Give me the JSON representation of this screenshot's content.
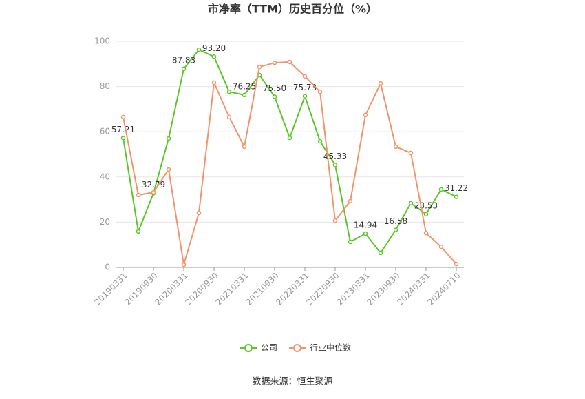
{
  "chart_data": {
    "type": "line",
    "title": "市净率（TTM）历史百分位（%）",
    "source": "数据来源：恒生聚源",
    "categories": [
      "20190331",
      null,
      "20190930",
      null,
      "20200331",
      null,
      "20200930",
      null,
      "20210331",
      null,
      "20210930",
      null,
      "20220331",
      null,
      "20220930",
      null,
      "20230331",
      null,
      "20230930",
      null,
      "20240331",
      null,
      "20240710"
    ],
    "series": [
      {
        "name": "公司",
        "color": "#5ac728",
        "values": [
          57.21,
          15.9,
          32.79,
          57.0,
          87.83,
          96.3,
          93.2,
          77.7,
          76.25,
          85.1,
          75.5,
          57.3,
          75.73,
          55.8,
          45.33,
          11.3,
          14.94,
          6.4,
          16.58,
          28.4,
          23.53,
          34.5,
          31.22
        ],
        "value_labels": [
          "57.21",
          null,
          "32.79",
          null,
          "87.83",
          null,
          "93.20",
          null,
          "76.25",
          null,
          "75.50",
          null,
          "75.73",
          null,
          "45.33",
          null,
          "14.94",
          null,
          "16.58",
          null,
          "23.53",
          null,
          "31.22"
        ]
      },
      {
        "name": "行业中位数",
        "color": "#f4926b",
        "values": [
          66.5,
          32.0,
          33.2,
          43.3,
          1.2,
          24.1,
          81.7,
          66.5,
          53.4,
          88.7,
          90.5,
          90.9,
          84.5,
          77.7,
          20.7,
          29.3,
          67.4,
          81.4,
          53.4,
          50.6,
          15.2,
          9.1,
          1.5
        ]
      }
    ],
    "ylim": [
      0,
      100
    ],
    "yticks": [
      0,
      20,
      40,
      60,
      80,
      100
    ],
    "grid": true,
    "legend": "bottom"
  }
}
